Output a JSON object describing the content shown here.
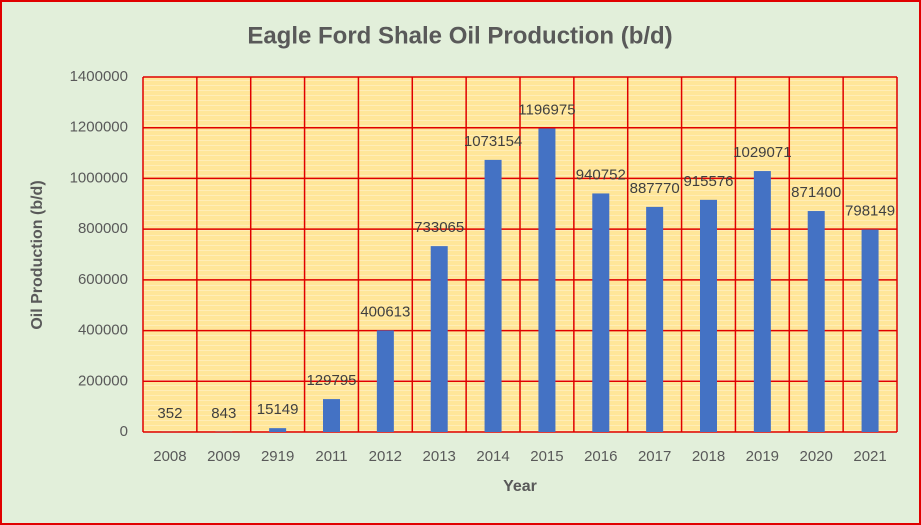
{
  "chart_data": {
    "type": "bar",
    "title": "Eagle Ford Shale Oil Production (b/d)",
    "x_label": "Year",
    "y_label": "Oil Production (b/d)",
    "categories": [
      "2008",
      "2009",
      "2919",
      "2011",
      "2012",
      "2013",
      "2014",
      "2015",
      "2016",
      "2017",
      "2018",
      "2019",
      "2020",
      "2021"
    ],
    "values": [
      352,
      843,
      15149,
      129795,
      400613,
      733065,
      1073154,
      1196975,
      940752,
      887770,
      915576,
      1029071,
      871400,
      798149
    ],
    "color": "#4472c4",
    "grid": true,
    "grid_color": "#e00000",
    "ylim": [
      0,
      1400000
    ],
    "yticks": [
      0,
      200000,
      400000,
      600000,
      800000,
      1000000,
      1200000,
      1400000
    ]
  }
}
